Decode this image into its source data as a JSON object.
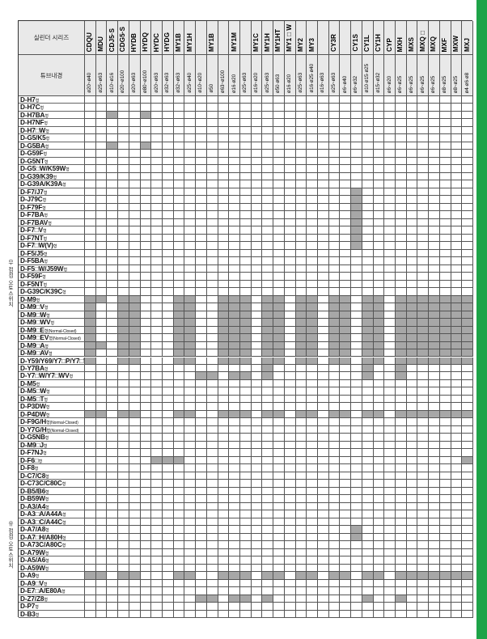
{
  "header": {
    "series_label": "실린더 시리즈",
    "bore_label": "튜브내경"
  },
  "group_labels": [
    "무 접점 오토스위치",
    "유 접점 오토스위치"
  ],
  "columns": [
    {
      "series": "CDQU",
      "bore": "ø20~ø40"
    },
    {
      "series": "MDU",
      "bore": "ø25~ø63"
    },
    {
      "series": "CDJ5·S",
      "bore": "ø10~ø16"
    },
    {
      "series": "CDG5·S",
      "bore": "ø20~ø100"
    },
    {
      "series": "HYDB",
      "bore": "ø20~ø63"
    },
    {
      "series": "HYDQ",
      "bore": "ø80~ø100"
    },
    {
      "series": "HYDC",
      "bore": "ø20~ø63"
    },
    {
      "series": "HYDG",
      "bore": "ø32~ø63"
    },
    {
      "series": "MY1B",
      "bore": "ø32~ø63"
    },
    {
      "series": "MY1H",
      "bore": "ø25~ø40"
    },
    {
      "series": "",
      "bore": "ø10~ø20"
    },
    {
      "series": "MY1B",
      "bore": "ø50"
    },
    {
      "series": "",
      "bore": "ø63~ø100"
    },
    {
      "series": "MY1M",
      "bore": "ø16·ø20"
    },
    {
      "series": "",
      "bore": "ø25~ø63"
    },
    {
      "series": "MY1C",
      "bore": "ø16~ø20"
    },
    {
      "series": "MY1H",
      "bore": "ø25~ø63"
    },
    {
      "series": "MY1HT",
      "bore": "ø50·ø63"
    },
    {
      "series": "MY1□W",
      "bore": "ø16·ø20"
    },
    {
      "series": "MY2",
      "bore": "ø25~ø63"
    },
    {
      "series": "MY3",
      "bore": "ø16·ø25·ø40"
    },
    {
      "series": "",
      "bore": "ø16~ø63"
    },
    {
      "series": "CY3R",
      "bore": "ø25~ø63"
    },
    {
      "series": "",
      "bore": "ø6~ø40"
    },
    {
      "series": "CY1S",
      "bore": "ø6~ø32"
    },
    {
      "series": "CY1L",
      "bore": "ø10·ø15·ø25"
    },
    {
      "series": "CY1H",
      "bore": "ø15~ø32"
    },
    {
      "series": "CYP",
      "bore": "ø6~ø20"
    },
    {
      "series": "MXH",
      "bore": "ø6~ø25"
    },
    {
      "series": "MXS",
      "bore": "ø6~ø25"
    },
    {
      "series": "MXQ□",
      "bore": "ø6~ø25"
    },
    {
      "series": "MXQ",
      "bore": "ø6~ø25"
    },
    {
      "series": "MXF",
      "bore": "ø8~ø25"
    },
    {
      "series": "MXW",
      "bore": "ø8~ø25"
    },
    {
      "series": "MXJ",
      "bore": "ø4·ø6·ø8"
    }
  ],
  "rows": [
    {
      "label": "D-H7",
      "suffix": "형"
    },
    {
      "label": "D-H7C",
      "suffix": "형"
    },
    {
      "label": "D-H7BA",
      "suffix": "형"
    },
    {
      "label": "D-H7NF",
      "suffix": "형"
    },
    {
      "label": "D-H7□W",
      "suffix": "형"
    },
    {
      "label": "D-G5/K5",
      "suffix": "형"
    },
    {
      "label": "D-G5BA",
      "suffix": "형"
    },
    {
      "label": "D-G59F",
      "suffix": "형"
    },
    {
      "label": "D-G5NT",
      "suffix": "형"
    },
    {
      "label": "D-G5□W/K59W",
      "suffix": "형"
    },
    {
      "label": "D-G39/K39",
      "suffix": "형"
    },
    {
      "label": "D-G39A/K39A",
      "suffix": "형"
    },
    {
      "label": "D-F7/J7",
      "suffix": "형"
    },
    {
      "label": "D-J79C",
      "suffix": "형"
    },
    {
      "label": "D-F79F",
      "suffix": "형"
    },
    {
      "label": "D-F7BA",
      "suffix": "형"
    },
    {
      "label": "D-F7BAV",
      "suffix": "형"
    },
    {
      "label": "D-F7□V",
      "suffix": "형"
    },
    {
      "label": "D-F7NT",
      "suffix": "형"
    },
    {
      "label": "D-F7□W(V)",
      "suffix": "형"
    },
    {
      "label": "D-F5/J5",
      "suffix": "형"
    },
    {
      "label": "D-F5BA",
      "suffix": "형"
    },
    {
      "label": "D-F5□W/J59W",
      "suffix": "형"
    },
    {
      "label": "D-F59F",
      "suffix": "형"
    },
    {
      "label": "D-F5NT",
      "suffix": "형"
    },
    {
      "label": "D-G39C/K39C",
      "suffix": "형"
    },
    {
      "label": "D-M9",
      "suffix": "형"
    },
    {
      "label": "D-M9□V",
      "suffix": "형"
    },
    {
      "label": "D-M9□W",
      "suffix": "형"
    },
    {
      "label": "D-M9□WV",
      "suffix": "형"
    },
    {
      "label": "D-M9□E",
      "suffix": "형(Normal-Closed)"
    },
    {
      "label": "D-M9□EV",
      "suffix": "형(Normal-Closed)"
    },
    {
      "label": "D-M9□A",
      "suffix": "형"
    },
    {
      "label": "D-M9□AV",
      "suffix": "형"
    },
    {
      "label": "D-Y59/Y69/Y7□P/Y7□V",
      "suffix": "형"
    },
    {
      "label": "D-Y7BA",
      "suffix": "형"
    },
    {
      "label": "D-Y7□W/Y7□WV",
      "suffix": "형"
    },
    {
      "label": "D-M5",
      "suffix": "형"
    },
    {
      "label": "D-M5□W",
      "suffix": "형"
    },
    {
      "label": "D-M5□T",
      "suffix": "형"
    },
    {
      "label": "D-P3DW",
      "suffix": "형"
    },
    {
      "label": "D-P4DW",
      "suffix": "형"
    },
    {
      "label": "D-F9G/H",
      "suffix": "형(Normal-Closed)"
    },
    {
      "label": "D-Y7G/H",
      "suffix": "형(Normal-Closed)"
    },
    {
      "label": "D-G5NB",
      "suffix": "형"
    },
    {
      "label": "D-M9□J",
      "suffix": "형"
    },
    {
      "label": "D-F7NJ",
      "suffix": "형"
    },
    {
      "label": "D-F6□",
      "suffix": "형"
    },
    {
      "label": "D-F8",
      "suffix": "형"
    },
    {
      "label": "D-C7/C8",
      "suffix": "형"
    },
    {
      "label": "D-C73C/C80C",
      "suffix": "형"
    },
    {
      "label": "D-B5/B6",
      "suffix": "형"
    },
    {
      "label": "D-B59W",
      "suffix": "형"
    },
    {
      "label": "D-A3/A4",
      "suffix": "형"
    },
    {
      "label": "D-A3□A/A44A",
      "suffix": "형"
    },
    {
      "label": "D-A3□C/A44C",
      "suffix": "형"
    },
    {
      "label": "D-A7/A8",
      "suffix": "형"
    },
    {
      "label": "D-A7□H/A80H",
      "suffix": "형"
    },
    {
      "label": "D-A73C/A80C",
      "suffix": "형"
    },
    {
      "label": "D-A79W",
      "suffix": "형"
    },
    {
      "label": "D-A5/A6",
      "suffix": "형"
    },
    {
      "label": "D-A59W",
      "suffix": "형"
    },
    {
      "label": "D-A9",
      "suffix": "형"
    },
    {
      "label": "D-A9□V",
      "suffix": "형"
    },
    {
      "label": "D-E7□A/E80A",
      "suffix": "형"
    },
    {
      "label": "D-Z7/Z8",
      "suffix": "형"
    },
    {
      "label": "D-P7",
      "suffix": "형"
    },
    {
      "label": "D-B3",
      "suffix": "형"
    }
  ],
  "shaded": [
    [
      2,
      2
    ],
    [
      2,
      5
    ],
    [
      6,
      2
    ],
    [
      6,
      5
    ],
    [
      12,
      24
    ],
    [
      13,
      24
    ],
    [
      14,
      24
    ],
    [
      15,
      24
    ],
    [
      16,
      24
    ],
    [
      17,
      24
    ],
    [
      18,
      24
    ],
    [
      19,
      24
    ],
    [
      26,
      0
    ],
    [
      26,
      1
    ],
    [
      26,
      3
    ],
    [
      26,
      4
    ],
    [
      26,
      8
    ],
    [
      26,
      9
    ],
    [
      26,
      12
    ],
    [
      26,
      13
    ],
    [
      26,
      14
    ],
    [
      26,
      16
    ],
    [
      26,
      17
    ],
    [
      26,
      19
    ],
    [
      26,
      20
    ],
    [
      26,
      22
    ],
    [
      26,
      23
    ],
    [
      26,
      25
    ],
    [
      26,
      26
    ],
    [
      26,
      28
    ],
    [
      26,
      29
    ],
    [
      26,
      30
    ],
    [
      26,
      31
    ],
    [
      26,
      32
    ],
    [
      26,
      33
    ],
    [
      26,
      34
    ],
    [
      27,
      0
    ],
    [
      27,
      3
    ],
    [
      27,
      4
    ],
    [
      27,
      8
    ],
    [
      27,
      9
    ],
    [
      27,
      12
    ],
    [
      27,
      13
    ],
    [
      27,
      14
    ],
    [
      27,
      16
    ],
    [
      27,
      17
    ],
    [
      27,
      19
    ],
    [
      27,
      20
    ],
    [
      27,
      22
    ],
    [
      27,
      23
    ],
    [
      27,
      25
    ],
    [
      27,
      26
    ],
    [
      27,
      28
    ],
    [
      27,
      29
    ],
    [
      27,
      30
    ],
    [
      27,
      31
    ],
    [
      27,
      32
    ],
    [
      27,
      33
    ],
    [
      27,
      34
    ],
    [
      28,
      0
    ],
    [
      28,
      3
    ],
    [
      28,
      4
    ],
    [
      28,
      8
    ],
    [
      28,
      9
    ],
    [
      28,
      12
    ],
    [
      28,
      13
    ],
    [
      28,
      14
    ],
    [
      28,
      16
    ],
    [
      28,
      17
    ],
    [
      28,
      19
    ],
    [
      28,
      20
    ],
    [
      28,
      22
    ],
    [
      28,
      23
    ],
    [
      28,
      25
    ],
    [
      28,
      26
    ],
    [
      28,
      28
    ],
    [
      28,
      29
    ],
    [
      28,
      30
    ],
    [
      28,
      31
    ],
    [
      28,
      32
    ],
    [
      28,
      33
    ],
    [
      28,
      34
    ],
    [
      29,
      0
    ],
    [
      29,
      3
    ],
    [
      29,
      4
    ],
    [
      29,
      8
    ],
    [
      29,
      9
    ],
    [
      29,
      12
    ],
    [
      29,
      13
    ],
    [
      29,
      14
    ],
    [
      29,
      16
    ],
    [
      29,
      17
    ],
    [
      29,
      19
    ],
    [
      29,
      20
    ],
    [
      29,
      22
    ],
    [
      29,
      23
    ],
    [
      29,
      25
    ],
    [
      29,
      26
    ],
    [
      29,
      28
    ],
    [
      29,
      29
    ],
    [
      29,
      30
    ],
    [
      29,
      31
    ],
    [
      29,
      32
    ],
    [
      29,
      33
    ],
    [
      29,
      34
    ],
    [
      30,
      0
    ],
    [
      30,
      3
    ],
    [
      30,
      4
    ],
    [
      30,
      8
    ],
    [
      30,
      9
    ],
    [
      30,
      12
    ],
    [
      30,
      13
    ],
    [
      30,
      14
    ],
    [
      30,
      16
    ],
    [
      30,
      17
    ],
    [
      30,
      19
    ],
    [
      30,
      20
    ],
    [
      30,
      22
    ],
    [
      30,
      23
    ],
    [
      30,
      25
    ],
    [
      30,
      26
    ],
    [
      30,
      28
    ],
    [
      30,
      29
    ],
    [
      30,
      30
    ],
    [
      30,
      31
    ],
    [
      30,
      32
    ],
    [
      30,
      33
    ],
    [
      30,
      34
    ],
    [
      31,
      0
    ],
    [
      31,
      3
    ],
    [
      31,
      4
    ],
    [
      31,
      8
    ],
    [
      31,
      9
    ],
    [
      31,
      12
    ],
    [
      31,
      13
    ],
    [
      31,
      14
    ],
    [
      31,
      16
    ],
    [
      31,
      17
    ],
    [
      31,
      19
    ],
    [
      31,
      20
    ],
    [
      31,
      22
    ],
    [
      31,
      23
    ],
    [
      31,
      25
    ],
    [
      31,
      26
    ],
    [
      31,
      28
    ],
    [
      31,
      29
    ],
    [
      31,
      30
    ],
    [
      31,
      31
    ],
    [
      31,
      32
    ],
    [
      31,
      33
    ],
    [
      31,
      34
    ],
    [
      32,
      0
    ],
    [
      32,
      1
    ],
    [
      32,
      3
    ],
    [
      32,
      4
    ],
    [
      32,
      8
    ],
    [
      32,
      9
    ],
    [
      32,
      12
    ],
    [
      32,
      13
    ],
    [
      32,
      14
    ],
    [
      32,
      16
    ],
    [
      32,
      17
    ],
    [
      32,
      19
    ],
    [
      32,
      20
    ],
    [
      32,
      22
    ],
    [
      32,
      23
    ],
    [
      32,
      25
    ],
    [
      32,
      26
    ],
    [
      32,
      28
    ],
    [
      32,
      29
    ],
    [
      32,
      30
    ],
    [
      32,
      31
    ],
    [
      32,
      32
    ],
    [
      32,
      33
    ],
    [
      32,
      34
    ],
    [
      33,
      0
    ],
    [
      33,
      3
    ],
    [
      33,
      4
    ],
    [
      33,
      8
    ],
    [
      33,
      9
    ],
    [
      33,
      12
    ],
    [
      33,
      13
    ],
    [
      33,
      14
    ],
    [
      33,
      16
    ],
    [
      33,
      17
    ],
    [
      33,
      19
    ],
    [
      33,
      20
    ],
    [
      33,
      22
    ],
    [
      33,
      23
    ],
    [
      33,
      25
    ],
    [
      33,
      26
    ],
    [
      33,
      28
    ],
    [
      33,
      29
    ],
    [
      33,
      30
    ],
    [
      33,
      31
    ],
    [
      33,
      32
    ],
    [
      33,
      33
    ],
    [
      33,
      34
    ],
    [
      34,
      0
    ],
    [
      34,
      3
    ],
    [
      34,
      4
    ],
    [
      34,
      8
    ],
    [
      34,
      9
    ],
    [
      34,
      12
    ],
    [
      34,
      13
    ],
    [
      34,
      14
    ],
    [
      34,
      16
    ],
    [
      34,
      17
    ],
    [
      34,
      19
    ],
    [
      34,
      20
    ],
    [
      34,
      22
    ],
    [
      34,
      23
    ],
    [
      34,
      25
    ],
    [
      34,
      26
    ],
    [
      34,
      28
    ],
    [
      34,
      29
    ],
    [
      34,
      30
    ],
    [
      34,
      31
    ],
    [
      34,
      32
    ],
    [
      34,
      33
    ],
    [
      34,
      34
    ],
    [
      35,
      16
    ],
    [
      35,
      25
    ],
    [
      35,
      28
    ],
    [
      36,
      10
    ],
    [
      36,
      11
    ],
    [
      36,
      13
    ],
    [
      36,
      14
    ],
    [
      36,
      16
    ],
    [
      36,
      25
    ],
    [
      36,
      28
    ],
    [
      41,
      0
    ],
    [
      41,
      1
    ],
    [
      41,
      3
    ],
    [
      41,
      4
    ],
    [
      41,
      8
    ],
    [
      41,
      9
    ],
    [
      41,
      12
    ],
    [
      41,
      13
    ],
    [
      41,
      14
    ],
    [
      41,
      16
    ],
    [
      41,
      17
    ],
    [
      41,
      19
    ],
    [
      41,
      20
    ],
    [
      41,
      22
    ],
    [
      41,
      23
    ],
    [
      41,
      25
    ],
    [
      41,
      26
    ],
    [
      41,
      28
    ],
    [
      41,
      29
    ],
    [
      41,
      30
    ],
    [
      41,
      31
    ],
    [
      41,
      32
    ],
    [
      41,
      33
    ],
    [
      41,
      34
    ],
    [
      47,
      6
    ],
    [
      47,
      7
    ],
    [
      47,
      8
    ],
    [
      47,
      34
    ],
    [
      56,
      24
    ],
    [
      57,
      24
    ],
    [
      62,
      0
    ],
    [
      62,
      1
    ],
    [
      62,
      3
    ],
    [
      62,
      4
    ],
    [
      62,
      8
    ],
    [
      62,
      9
    ],
    [
      62,
      12
    ],
    [
      62,
      13
    ],
    [
      62,
      14
    ],
    [
      62,
      16
    ],
    [
      62,
      17
    ],
    [
      62,
      19
    ],
    [
      62,
      20
    ],
    [
      62,
      22
    ],
    [
      62,
      23
    ],
    [
      62,
      25
    ],
    [
      62,
      26
    ],
    [
      62,
      28
    ],
    [
      62,
      29
    ],
    [
      62,
      30
    ],
    [
      62,
      31
    ],
    [
      62,
      32
    ],
    [
      62,
      33
    ],
    [
      62,
      34
    ],
    [
      65,
      10
    ],
    [
      65,
      11
    ],
    [
      65,
      13
    ],
    [
      65,
      14
    ],
    [
      65,
      16
    ],
    [
      65,
      25
    ],
    [
      65,
      28
    ]
  ],
  "colors": {
    "stripe": "#1ea348",
    "shade": "#a7a7a7",
    "header_bg": "#e9e9e9"
  }
}
